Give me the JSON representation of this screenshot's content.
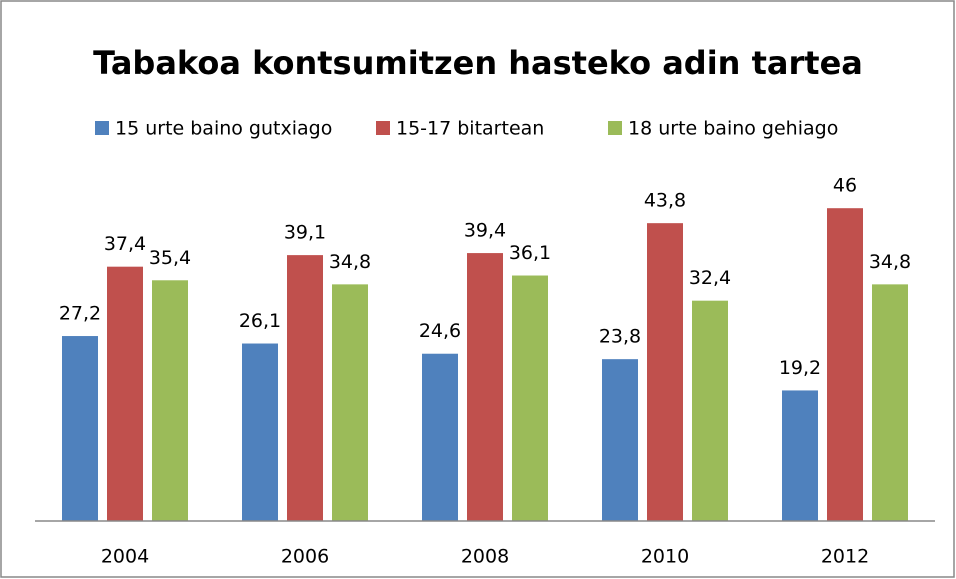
{
  "chart_data": {
    "type": "bar",
    "title": "Tabakoa kontsumitzen hasteko adin tartea",
    "categories": [
      "2004",
      "2006",
      "2008",
      "2010",
      "2012"
    ],
    "series": [
      {
        "name": "15 urte baino gutxiago",
        "color": "#4f81bd",
        "values": [
          27.2,
          26.1,
          24.6,
          23.8,
          19.2
        ],
        "value_labels": [
          "27,2",
          "26,1",
          "24,6",
          "23,8",
          "19,2"
        ]
      },
      {
        "name": "15-17 bitartean",
        "color": "#c0504d",
        "values": [
          37.4,
          39.1,
          39.4,
          43.8,
          46
        ],
        "value_labels": [
          "37,4",
          "39,1",
          "39,4",
          "43,8",
          "46"
        ]
      },
      {
        "name": "18 urte baino gehiago",
        "color": "#9bbb59",
        "values": [
          35.4,
          34.8,
          36.1,
          32.4,
          34.8
        ],
        "value_labels": [
          "35,4",
          "34,8",
          "36,1",
          "32,4",
          "34,8"
        ]
      }
    ],
    "ylim": [
      0,
      50
    ],
    "legend": "top"
  }
}
